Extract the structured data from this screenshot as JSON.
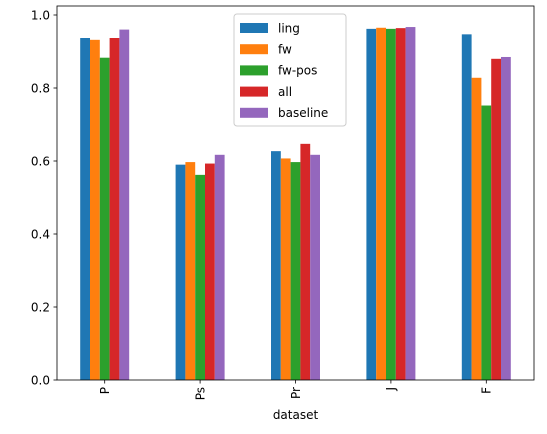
{
  "chart_data": {
    "type": "bar",
    "title": "",
    "xlabel": "dataset",
    "ylabel": "",
    "categories": [
      "P",
      "Ps",
      "Pr",
      "J",
      "F"
    ],
    "series": [
      {
        "name": "ling",
        "color": "#1f77b4",
        "values": [
          0.937,
          0.59,
          0.627,
          0.962,
          0.947
        ]
      },
      {
        "name": "fw",
        "color": "#ff7f0e",
        "values": [
          0.932,
          0.597,
          0.607,
          0.965,
          0.828
        ]
      },
      {
        "name": "fw-pos",
        "color": "#2ca02c",
        "values": [
          0.883,
          0.562,
          0.597,
          0.962,
          0.752
        ]
      },
      {
        "name": "all",
        "color": "#d62728",
        "values": [
          0.937,
          0.593,
          0.647,
          0.964,
          0.88
        ]
      },
      {
        "name": "baseline",
        "color": "#9467bd",
        "values": [
          0.96,
          0.617,
          0.617,
          0.967,
          0.885
        ]
      }
    ],
    "ylim": [
      0,
      1.0
    ],
    "yticks": [
      0.0,
      0.2,
      0.4,
      0.6,
      0.8,
      1.0
    ],
    "ytick_labels": [
      "0.0",
      "0.2",
      "0.4",
      "0.6",
      "0.8",
      "1.0"
    ],
    "grid": false,
    "legend_position": "top-center"
  }
}
